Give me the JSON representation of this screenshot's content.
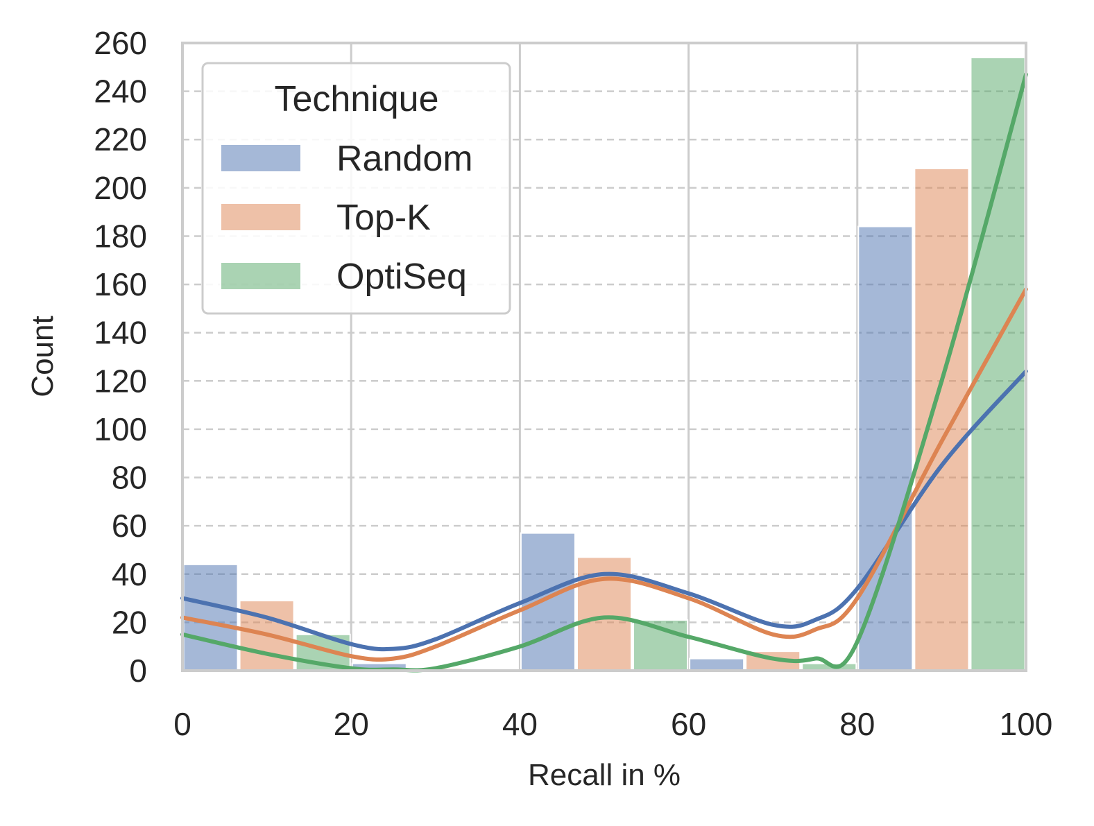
{
  "chart_data": {
    "type": "bar",
    "subtype": "histogram-with-kde",
    "xlabel": "Recall in %",
    "ylabel": "Count",
    "xlim": [
      0,
      100
    ],
    "ylim": [
      0,
      260
    ],
    "xticks": [
      0,
      20,
      40,
      60,
      80,
      100
    ],
    "xtick_labels": [
      "0",
      "20",
      "40",
      "60",
      "80",
      "100"
    ],
    "yticks": [
      0,
      20,
      40,
      60,
      80,
      100,
      120,
      140,
      160,
      180,
      200,
      220,
      240,
      260
    ],
    "ytick_labels": [
      "0",
      "20",
      "40",
      "60",
      "80",
      "100",
      "120",
      "140",
      "160",
      "180",
      "200",
      "220",
      "240",
      "260"
    ],
    "bin_edges": [
      0,
      20,
      40,
      60,
      80,
      100
    ],
    "legend": {
      "title": "Technique",
      "placement": "top-left"
    },
    "grid": "x solid, y dashed",
    "series": [
      {
        "name": "Random",
        "color": "#4c72b0",
        "values": [
          44,
          3,
          57,
          5,
          184
        ],
        "kde_x": [
          0,
          10,
          20,
          25,
          30,
          40,
          50,
          60,
          70,
          75,
          80,
          90,
          100
        ],
        "kde_y": [
          30,
          22,
          11,
          9,
          13,
          28,
          40,
          32,
          19,
          21,
          34,
          85,
          124
        ]
      },
      {
        "name": "Top-K",
        "color": "#dd8452",
        "values": [
          29,
          1,
          47,
          8,
          208
        ],
        "kde_x": [
          0,
          10,
          20,
          25,
          30,
          40,
          50,
          60,
          70,
          75,
          80,
          90,
          100
        ],
        "kde_y": [
          22,
          15,
          6,
          5,
          10,
          25,
          38,
          30,
          15,
          17,
          30,
          95,
          158
        ]
      },
      {
        "name": "OptiSeq",
        "color": "#55a868",
        "values": [
          15,
          0,
          21,
          3,
          254
        ],
        "kde_x": [
          0,
          10,
          20,
          25,
          30,
          40,
          50,
          60,
          70,
          75,
          80,
          90,
          100
        ],
        "kde_y": [
          15,
          7,
          1,
          0.5,
          1,
          10,
          22,
          14,
          5,
          5,
          12,
          120,
          247
        ]
      }
    ]
  }
}
